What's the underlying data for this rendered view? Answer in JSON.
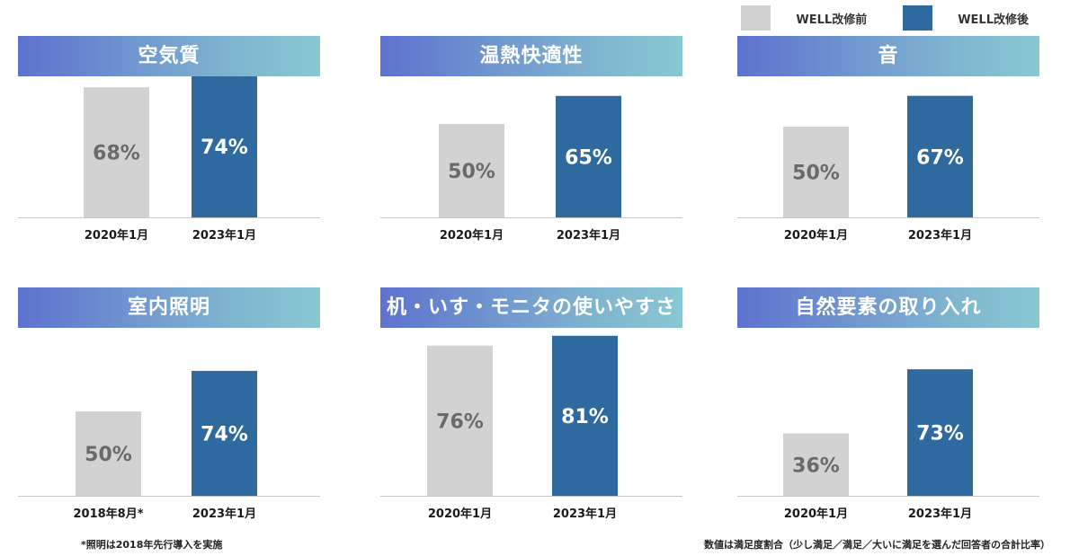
{
  "legend": {
    "before_label": "WELL改修前",
    "after_label": "WELL改修後",
    "before_color": "#d2d2d3",
    "after_color": "#2e6aa0"
  },
  "chart_data": [
    {
      "type": "bar",
      "title": "空気質",
      "categories": [
        "2020年1月",
        "2023年1月"
      ],
      "values": [
        68,
        74
      ],
      "value_labels": [
        "68%",
        "74%"
      ],
      "ylim": [
        0,
        100
      ]
    },
    {
      "type": "bar",
      "title": "温熱快適性",
      "categories": [
        "2020年1月",
        "2023年1月"
      ],
      "values": [
        50,
        65
      ],
      "value_labels": [
        "50%",
        "65%"
      ],
      "ylim": [
        0,
        100
      ]
    },
    {
      "type": "bar",
      "title": "音",
      "categories": [
        "2020年1月",
        "2023年1月"
      ],
      "values": [
        50,
        67
      ],
      "value_labels": [
        "50%",
        "67%"
      ],
      "ylim": [
        0,
        100
      ]
    },
    {
      "type": "bar",
      "title": "室内照明",
      "categories": [
        "2018年8月*",
        "2023年1月"
      ],
      "values": [
        50,
        74
      ],
      "value_labels": [
        "50%",
        "74%"
      ],
      "ylim": [
        0,
        100
      ]
    },
    {
      "type": "bar",
      "title": "机・いす・モニタの使いやすさ",
      "categories": [
        "2020年1月",
        "2023年1月"
      ],
      "values": [
        76,
        81
      ],
      "value_labels": [
        "76%",
        "81%"
      ],
      "ylim": [
        0,
        100
      ]
    },
    {
      "type": "bar",
      "title": "自然要素の取り入れ",
      "categories": [
        "2020年1月",
        "2023年1月"
      ],
      "values": [
        36,
        73
      ],
      "value_labels": [
        "36%",
        "73%"
      ],
      "ylim": [
        0,
        100
      ]
    }
  ],
  "notes": {
    "lighting_note": "*照明は2018年先行導入を実施",
    "value_note": "数値は満足度割合（少し満足／満足／大いに満足を選んだ回答者の合計比率）"
  }
}
